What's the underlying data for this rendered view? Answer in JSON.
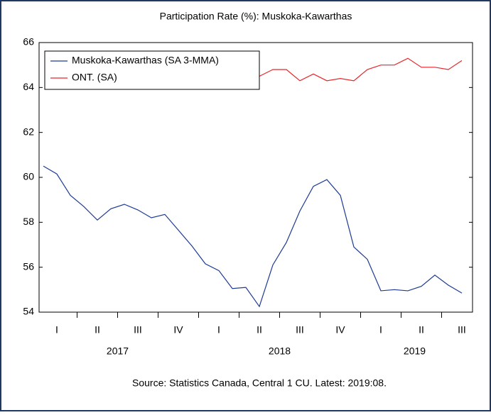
{
  "chart_data": {
    "type": "line",
    "title": "Participation Rate (%): Muskoka-Kawarthas",
    "source": "Source: Statistics Canada, Central 1 CU. Latest: 2019:08.",
    "categories": [
      null,
      "I",
      null,
      null,
      "II",
      null,
      null,
      "III",
      null,
      null,
      "IV",
      null,
      null,
      "I",
      null,
      null,
      "II",
      null,
      null,
      "III",
      null,
      null,
      "IV",
      null,
      null,
      "I",
      null,
      null,
      "II",
      null,
      null,
      "III"
    ],
    "years": [
      "2017",
      "2018",
      "2019"
    ],
    "series": [
      {
        "name": "Muskoka-Kawarthas (SA 3-MMA)",
        "color": "#1f3a93",
        "values": [
          60.5,
          60.15,
          59.2,
          58.7,
          58.1,
          58.6,
          58.8,
          58.55,
          58.2,
          58.35,
          57.65,
          56.95,
          56.15,
          55.85,
          55.05,
          55.1,
          54.25,
          56.1,
          57.1,
          58.5,
          59.6,
          59.9,
          59.2,
          56.9,
          56.35,
          54.95,
          55.0,
          54.95,
          55.15,
          55.65,
          55.2,
          54.85
        ]
      },
      {
        "name": "ONT. (SA)",
        "color": "#e8262b",
        "values": [
          null,
          null,
          null,
          null,
          null,
          null,
          null,
          null,
          null,
          null,
          null,
          null,
          null,
          null,
          null,
          null,
          64.5,
          64.8,
          64.8,
          64.3,
          64.6,
          64.3,
          64.4,
          64.3,
          64.8,
          65.0,
          65.0,
          65.3,
          64.9,
          64.9,
          64.8,
          65.2
        ]
      }
    ],
    "ylim": [
      54,
      66
    ],
    "yticks": [
      54,
      56,
      58,
      60,
      62,
      64,
      66
    ],
    "legend": "top-left"
  }
}
